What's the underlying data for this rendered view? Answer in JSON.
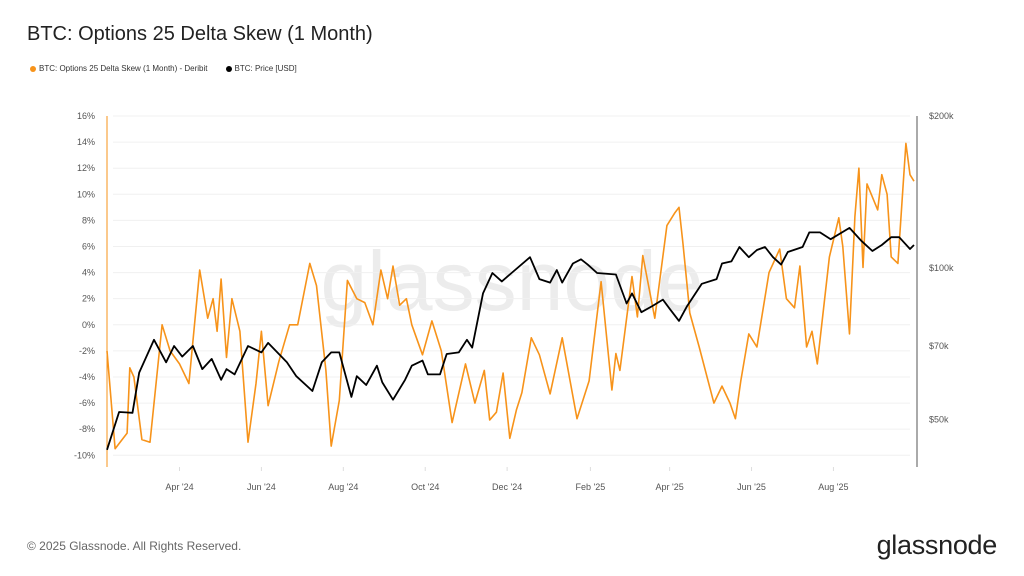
{
  "title": "BTC: Options 25 Delta Skew (1 Month)",
  "footer": "© 2025 Glassnode. All Rights Reserved.",
  "logo": "glassnode",
  "watermark": "glassnode",
  "chart_data": {
    "type": "line",
    "title": "BTC: Options 25 Delta Skew (1 Month)",
    "grid": true,
    "legend_position": "top-left",
    "x_range": [
      "2024-02-07",
      "2025-09-30"
    ],
    "x_ticks": [
      {
        "date": "2024-04-01",
        "label": "Apr '24"
      },
      {
        "date": "2024-06-01",
        "label": "Jun '24"
      },
      {
        "date": "2024-08-01",
        "label": "Aug '24"
      },
      {
        "date": "2024-10-01",
        "label": "Oct '24"
      },
      {
        "date": "2024-12-01",
        "label": "Dec '24"
      },
      {
        "date": "2025-02-01",
        "label": "Feb '25"
      },
      {
        "date": "2025-04-01",
        "label": "Apr '25"
      },
      {
        "date": "2025-06-01",
        "label": "Jun '25"
      },
      {
        "date": "2025-08-01",
        "label": "Aug '25"
      }
    ],
    "y_left": {
      "ylim": [
        -10.9,
        16
      ],
      "scale": "linear",
      "ticks": [
        16,
        14,
        12,
        10,
        8,
        6,
        4,
        2,
        0,
        -2,
        -4,
        -6,
        -8,
        -10
      ],
      "tick_labels": [
        "16%",
        "14%",
        "12%",
        "10%",
        "8%",
        "6%",
        "4%",
        "2%",
        "0%",
        "-2%",
        "-4%",
        "-6%",
        "-8%",
        "-10%"
      ]
    },
    "y_right": {
      "ylim": [
        40300,
        200000
      ],
      "scale": "log",
      "ticks": [
        200000,
        100000,
        70000,
        50000
      ],
      "tick_labels": [
        "$200k",
        "$100k",
        "$70k",
        "$50k"
      ]
    },
    "series": [
      {
        "name": "BTC: Options 25 Delta Skew (1 Month) - Deribit",
        "axis": "left",
        "color": "#f7931a",
        "points": [
          [
            "2024-02-07",
            -2
          ],
          [
            "2024-02-13",
            -9.5
          ],
          [
            "2024-02-22",
            -8.3
          ],
          [
            "2024-02-24",
            -3.3
          ],
          [
            "2024-02-27",
            -4
          ],
          [
            "2024-03-04",
            -8.8
          ],
          [
            "2024-03-10",
            -9
          ],
          [
            "2024-03-19",
            0
          ],
          [
            "2024-03-25",
            -2
          ],
          [
            "2024-04-01",
            -3
          ],
          [
            "2024-04-08",
            -4.5
          ],
          [
            "2024-04-16",
            4.2
          ],
          [
            "2024-04-22",
            0.5
          ],
          [
            "2024-04-26",
            2
          ],
          [
            "2024-04-29",
            -0.5
          ],
          [
            "2024-05-02",
            3.5
          ],
          [
            "2024-05-06",
            -2.5
          ],
          [
            "2024-05-10",
            2
          ],
          [
            "2024-05-16",
            -0.5
          ],
          [
            "2024-05-22",
            -9
          ],
          [
            "2024-05-28",
            -4.5
          ],
          [
            "2024-06-01",
            -0.5
          ],
          [
            "2024-06-06",
            -6.2
          ],
          [
            "2024-06-14",
            -2.8
          ],
          [
            "2024-06-22",
            0
          ],
          [
            "2024-06-28",
            0
          ],
          [
            "2024-07-07",
            4.7
          ],
          [
            "2024-07-12",
            3
          ],
          [
            "2024-07-19",
            -3.5
          ],
          [
            "2024-07-23",
            -9.3
          ],
          [
            "2024-07-29",
            -5.8
          ],
          [
            "2024-08-04",
            3.4
          ],
          [
            "2024-08-11",
            2
          ],
          [
            "2024-08-17",
            1.7
          ],
          [
            "2024-08-23",
            0
          ],
          [
            "2024-08-29",
            4.2
          ],
          [
            "2024-09-03",
            2
          ],
          [
            "2024-09-07",
            4.5
          ],
          [
            "2024-09-12",
            1.5
          ],
          [
            "2024-09-17",
            2
          ],
          [
            "2024-09-21",
            0
          ],
          [
            "2024-09-29",
            -2.3
          ],
          [
            "2024-10-06",
            0.3
          ],
          [
            "2024-10-13",
            -2
          ],
          [
            "2024-10-21",
            -7.5
          ],
          [
            "2024-10-31",
            -3
          ],
          [
            "2024-11-07",
            -6
          ],
          [
            "2024-11-14",
            -3.5
          ],
          [
            "2024-11-18",
            -7.3
          ],
          [
            "2024-11-23",
            -6.7
          ],
          [
            "2024-11-28",
            -3.7
          ],
          [
            "2024-12-03",
            -8.7
          ],
          [
            "2024-12-08",
            -6.5
          ],
          [
            "2024-12-12",
            -5.2
          ],
          [
            "2024-12-19",
            -1
          ],
          [
            "2024-12-25",
            -2.3
          ],
          [
            "2025-01-02",
            -5.3
          ],
          [
            "2025-01-11",
            -1
          ],
          [
            "2025-01-22",
            -7.2
          ],
          [
            "2025-01-31",
            -4.3
          ],
          [
            "2025-02-09",
            3.3
          ],
          [
            "2025-02-17",
            -5
          ],
          [
            "2025-02-20",
            -2.2
          ],
          [
            "2025-02-23",
            -3.5
          ],
          [
            "2025-03-04",
            3.7
          ],
          [
            "2025-03-08",
            0.6
          ],
          [
            "2025-03-12",
            5.3
          ],
          [
            "2025-03-21",
            0.5
          ],
          [
            "2025-03-30",
            7.6
          ],
          [
            "2025-04-05",
            8.6
          ],
          [
            "2025-04-08",
            9
          ],
          [
            "2025-04-11",
            6.2
          ],
          [
            "2025-04-16",
            0.9
          ],
          [
            "2025-04-23",
            -1.7
          ],
          [
            "2025-05-04",
            -6
          ],
          [
            "2025-05-10",
            -4.7
          ],
          [
            "2025-05-16",
            -6
          ],
          [
            "2025-05-20",
            -7.2
          ],
          [
            "2025-05-24",
            -4.3
          ],
          [
            "2025-05-30",
            -0.7
          ],
          [
            "2025-06-05",
            -1.7
          ],
          [
            "2025-06-14",
            4
          ],
          [
            "2025-06-22",
            5.8
          ],
          [
            "2025-06-27",
            2
          ],
          [
            "2025-07-03",
            1.3
          ],
          [
            "2025-07-07",
            4.5
          ],
          [
            "2025-07-12",
            -1.7
          ],
          [
            "2025-07-16",
            -0.5
          ],
          [
            "2025-07-20",
            -3
          ],
          [
            "2025-07-29",
            5.2
          ],
          [
            "2025-08-05",
            8.2
          ],
          [
            "2025-08-08",
            6
          ],
          [
            "2025-08-13",
            -0.7
          ],
          [
            "2025-08-17",
            8.3
          ],
          [
            "2025-08-20",
            12
          ],
          [
            "2025-08-23",
            4.4
          ],
          [
            "2025-08-26",
            10.8
          ],
          [
            "2025-09-03",
            8.8
          ],
          [
            "2025-09-06",
            11.5
          ],
          [
            "2025-09-10",
            10
          ],
          [
            "2025-09-13",
            5.2
          ],
          [
            "2025-09-18",
            4.7
          ],
          [
            "2025-09-24",
            13.9
          ],
          [
            "2025-09-27",
            11.5
          ],
          [
            "2025-09-30",
            11
          ]
        ]
      },
      {
        "name": "BTC: Price [USD]",
        "axis": "right",
        "color": "#000000",
        "points": [
          [
            "2024-02-07",
            43600
          ],
          [
            "2024-02-16",
            51800
          ],
          [
            "2024-02-26",
            51600
          ],
          [
            "2024-03-02",
            62000
          ],
          [
            "2024-03-13",
            72000
          ],
          [
            "2024-03-22",
            65000
          ],
          [
            "2024-03-28",
            70000
          ],
          [
            "2024-04-03",
            66700
          ],
          [
            "2024-04-11",
            70000
          ],
          [
            "2024-04-18",
            63000
          ],
          [
            "2024-04-25",
            66000
          ],
          [
            "2024-05-02",
            60000
          ],
          [
            "2024-05-06",
            63000
          ],
          [
            "2024-05-12",
            61500
          ],
          [
            "2024-05-22",
            70000
          ],
          [
            "2024-06-01",
            68000
          ],
          [
            "2024-06-06",
            71000
          ],
          [
            "2024-06-20",
            65000
          ],
          [
            "2024-06-27",
            61000
          ],
          [
            "2024-07-09",
            57000
          ],
          [
            "2024-07-16",
            65000
          ],
          [
            "2024-07-23",
            68000
          ],
          [
            "2024-07-29",
            68000
          ],
          [
            "2024-08-07",
            55500
          ],
          [
            "2024-08-11",
            61000
          ],
          [
            "2024-08-18",
            58600
          ],
          [
            "2024-08-26",
            64000
          ],
          [
            "2024-08-30",
            59300
          ],
          [
            "2024-09-07",
            54800
          ],
          [
            "2024-09-16",
            60000
          ],
          [
            "2024-09-21",
            64000
          ],
          [
            "2024-09-29",
            65500
          ],
          [
            "2024-10-03",
            61500
          ],
          [
            "2024-10-12",
            61500
          ],
          [
            "2024-10-17",
            67500
          ],
          [
            "2024-10-26",
            68000
          ],
          [
            "2024-11-01",
            72000
          ],
          [
            "2024-11-05",
            69500
          ],
          [
            "2024-11-13",
            89000
          ],
          [
            "2024-11-20",
            97700
          ],
          [
            "2024-11-27",
            94000
          ],
          [
            "2024-12-03",
            97000
          ],
          [
            "2024-12-18",
            105000
          ],
          [
            "2024-12-25",
            95000
          ],
          [
            "2025-01-02",
            93500
          ],
          [
            "2025-01-07",
            99000
          ],
          [
            "2025-01-11",
            93500
          ],
          [
            "2025-01-19",
            102000
          ],
          [
            "2025-01-25",
            104000
          ],
          [
            "2025-01-30",
            101500
          ],
          [
            "2025-02-06",
            97700
          ],
          [
            "2025-02-20",
            97000
          ],
          [
            "2025-02-28",
            85000
          ],
          [
            "2025-03-04",
            89000
          ],
          [
            "2025-03-11",
            81700
          ],
          [
            "2025-03-19",
            84000
          ],
          [
            "2025-03-27",
            86500
          ],
          [
            "2025-04-01",
            83000
          ],
          [
            "2025-04-08",
            78500
          ],
          [
            "2025-04-14",
            84000
          ],
          [
            "2025-04-25",
            93000
          ],
          [
            "2025-05-06",
            95000
          ],
          [
            "2025-05-10",
            102000
          ],
          [
            "2025-05-17",
            103000
          ],
          [
            "2025-05-23",
            110000
          ],
          [
            "2025-05-30",
            105000
          ],
          [
            "2025-06-05",
            108500
          ],
          [
            "2025-06-11",
            110000
          ],
          [
            "2025-06-17",
            105000
          ],
          [
            "2025-06-23",
            101500
          ],
          [
            "2025-06-28",
            107500
          ],
          [
            "2025-07-09",
            110000
          ],
          [
            "2025-07-14",
            117600
          ],
          [
            "2025-07-22",
            117600
          ],
          [
            "2025-07-30",
            114000
          ],
          [
            "2025-08-13",
            120000
          ],
          [
            "2025-08-22",
            113000
          ],
          [
            "2025-08-30",
            108000
          ],
          [
            "2025-09-06",
            111000
          ],
          [
            "2025-09-13",
            115000
          ],
          [
            "2025-09-19",
            115000
          ],
          [
            "2025-09-27",
            109000
          ],
          [
            "2025-09-30",
            111000
          ]
        ]
      }
    ]
  }
}
